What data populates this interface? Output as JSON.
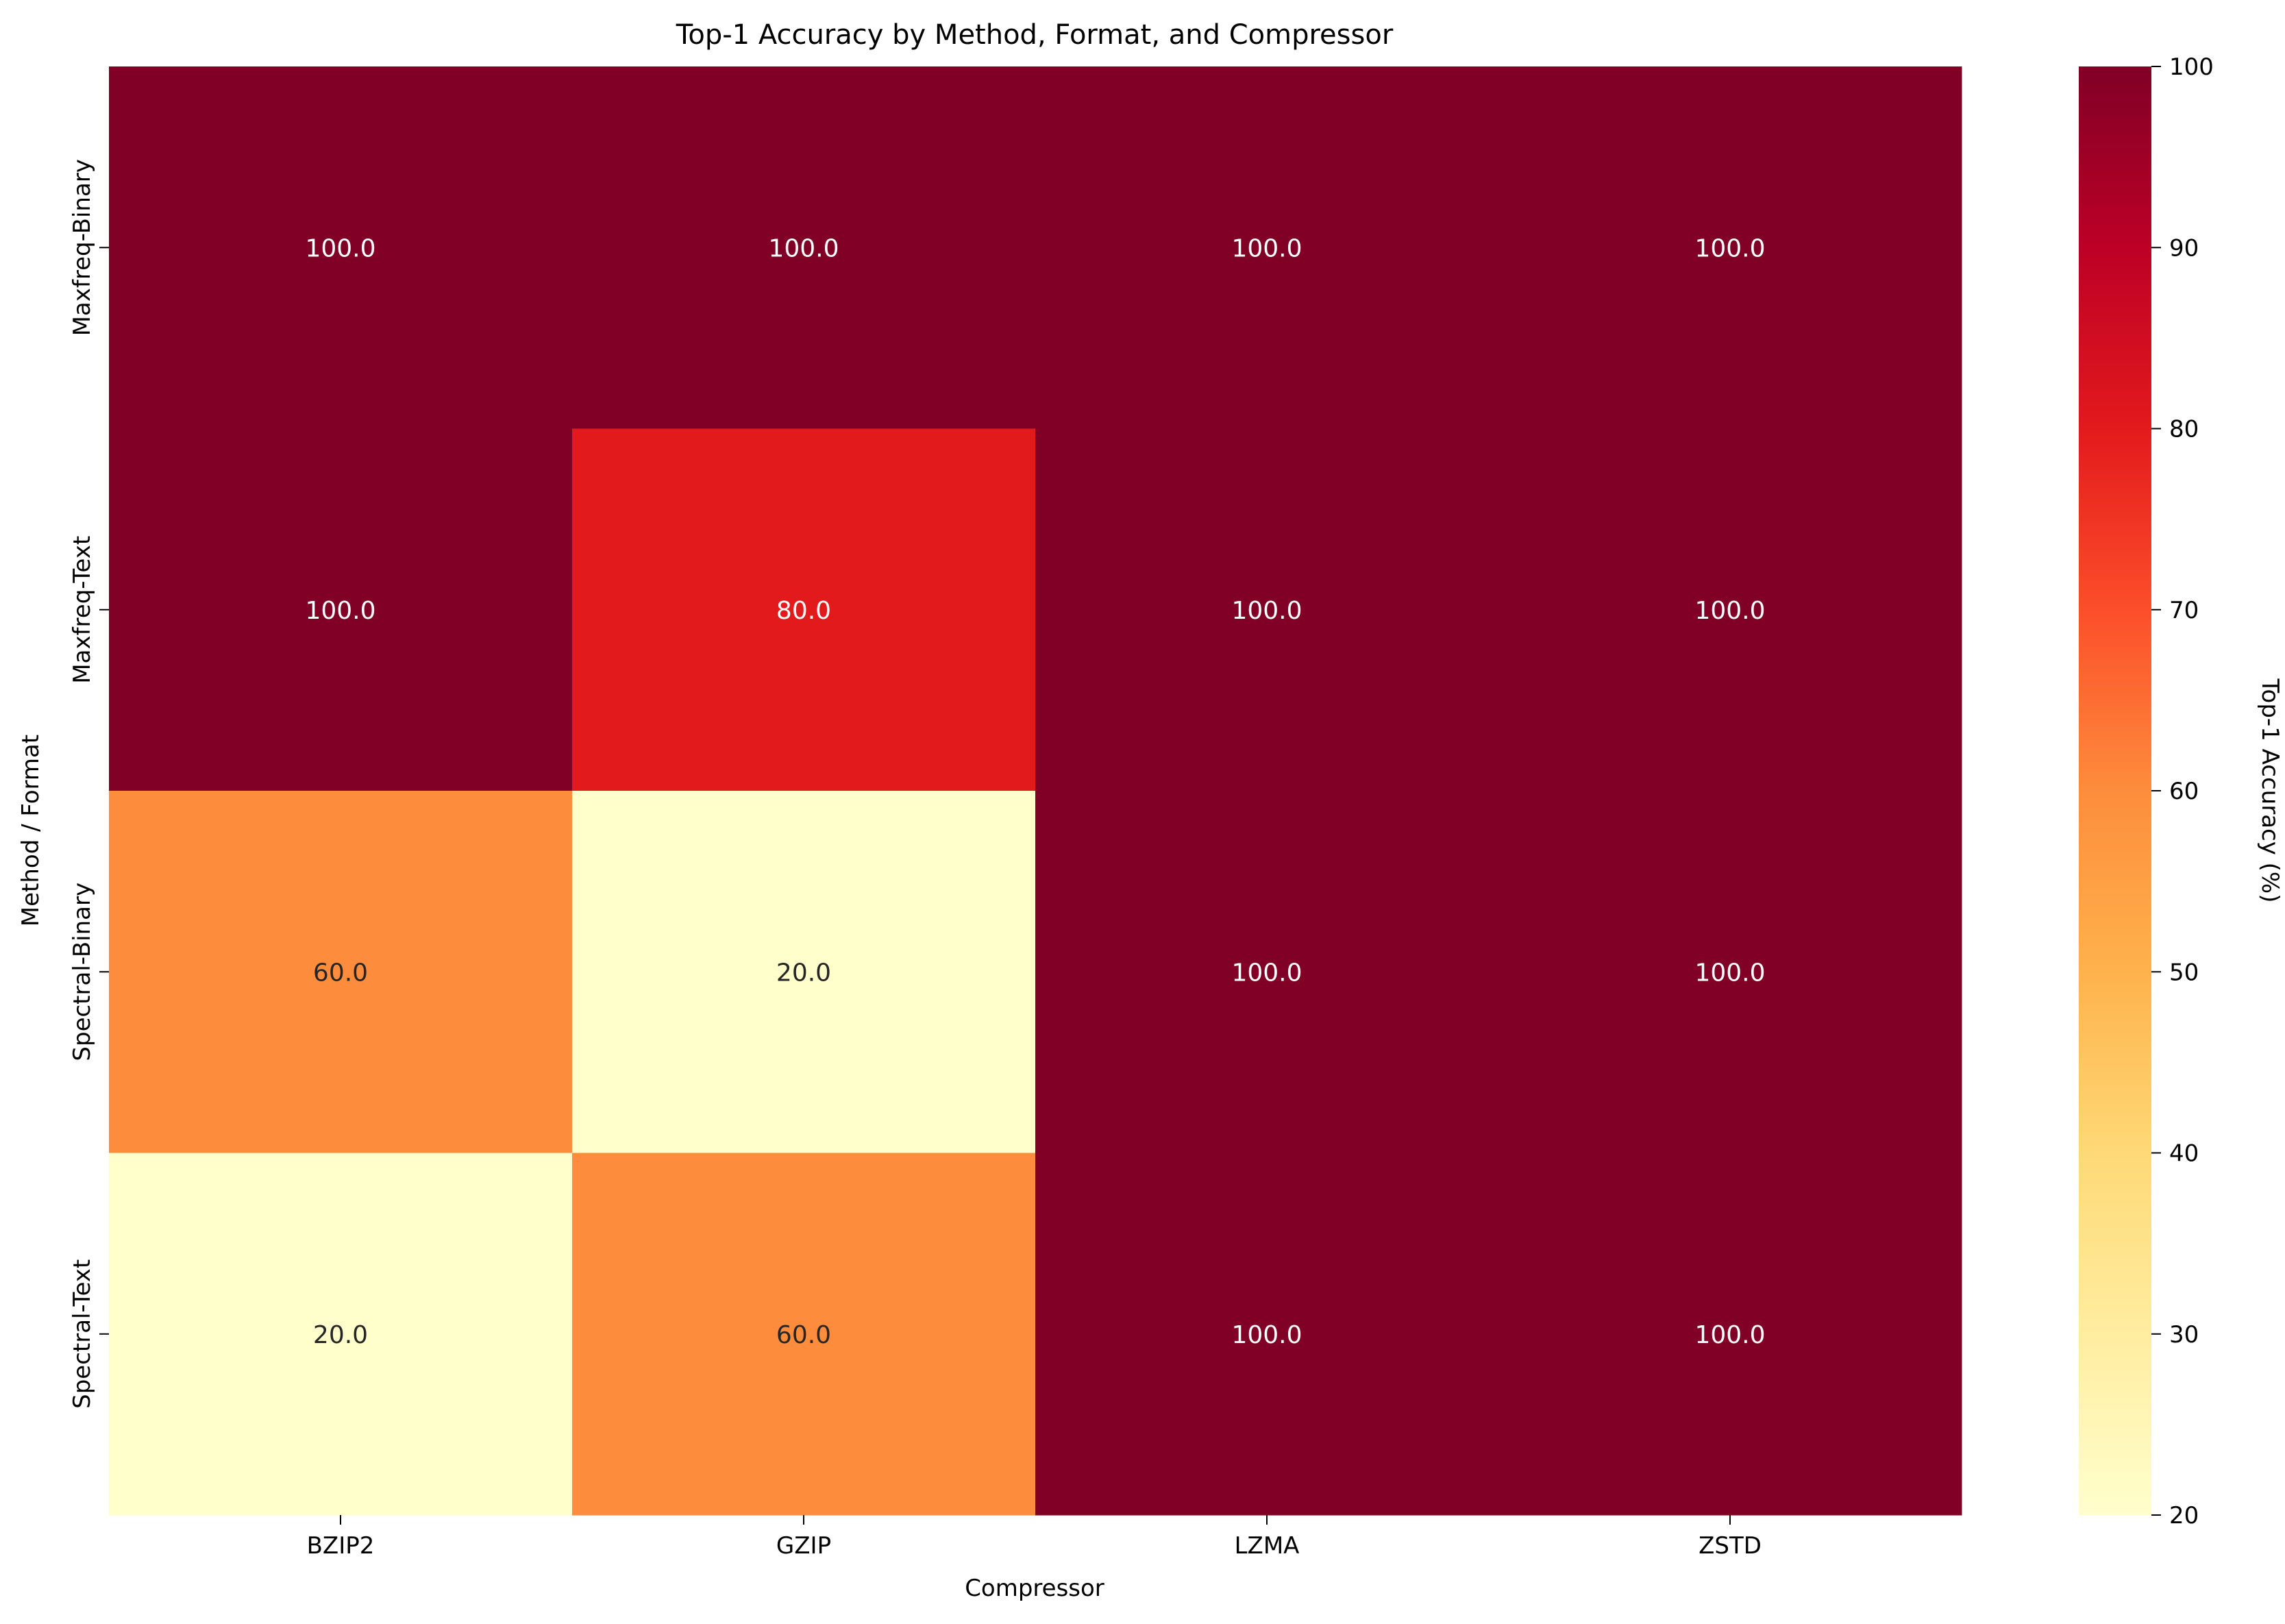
{
  "chart_data": {
    "type": "heatmap",
    "title": "Top-1 Accuracy by Method, Format, and Compressor",
    "xlabel": "Compressor",
    "ylabel": "Method / Format",
    "columns": [
      "BZIP2",
      "GZIP",
      "LZMA",
      "ZSTD"
    ],
    "rows": [
      "Maxfreq-Binary",
      "Maxfreq-Text",
      "Spectral-Binary",
      "Spectral-Text"
    ],
    "values": [
      [
        100.0,
        100.0,
        100.0,
        100.0
      ],
      [
        100.0,
        80.0,
        100.0,
        100.0
      ],
      [
        60.0,
        20.0,
        100.0,
        100.0
      ],
      [
        20.0,
        60.0,
        100.0,
        100.0
      ]
    ],
    "cell_labels": [
      [
        "100.0",
        "100.0",
        "100.0",
        "100.0"
      ],
      [
        "100.0",
        "80.0",
        "100.0",
        "100.0"
      ],
      [
        "60.0",
        "20.0",
        "100.0",
        "100.0"
      ],
      [
        "20.0",
        "60.0",
        "100.0",
        "100.0"
      ]
    ],
    "colorbar": {
      "label": "Top-1 Accuracy (%)",
      "range": [
        20,
        100
      ],
      "ticks": [
        "20",
        "30",
        "40",
        "50",
        "60",
        "70",
        "80",
        "90",
        "100"
      ],
      "colormap": "YlOrRd"
    },
    "grid": false,
    "legend": "colorbar-right"
  }
}
